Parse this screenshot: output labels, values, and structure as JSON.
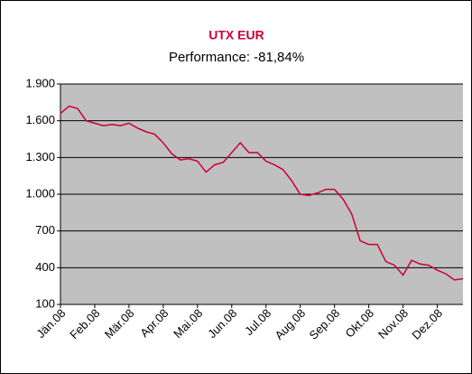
{
  "chart_data": {
    "type": "line",
    "title": "UTX EUR",
    "subtitle": "Performance: -81,84%",
    "categories": [
      "Jän.08",
      null,
      null,
      null,
      "Feb.08",
      null,
      null,
      null,
      "Mär.08",
      null,
      null,
      null,
      "Apr.08",
      null,
      null,
      null,
      "Mai.08",
      null,
      null,
      null,
      "Jun.08",
      null,
      null,
      null,
      "Jul.08",
      null,
      null,
      null,
      "Aug.08",
      null,
      null,
      null,
      "Sep.08",
      null,
      null,
      null,
      "Okt.08",
      null,
      null,
      null,
      "Nov.08",
      null,
      null,
      null,
      "Dez.08",
      null,
      null,
      null
    ],
    "values": [
      1660,
      1720,
      1700,
      1600,
      1580,
      1560,
      1570,
      1560,
      1580,
      1540,
      1510,
      1490,
      1420,
      1330,
      1280,
      1290,
      1270,
      1180,
      1240,
      1260,
      1340,
      1420,
      1340,
      1340,
      1270,
      1240,
      1200,
      1110,
      1000,
      990,
      1010,
      1040,
      1040,
      960,
      840,
      620,
      590,
      590,
      450,
      420,
      340,
      460,
      430,
      420,
      380,
      350,
      300,
      310
    ],
    "color": "#cc0033",
    "ylim": [
      100,
      1900
    ],
    "yticks": [
      100,
      400,
      700,
      {
        "value": 1000,
        "label": "1.000"
      },
      {
        "value": 1300,
        "label": "1.300"
      },
      {
        "value": 1600,
        "label": "1.600"
      },
      {
        "value": 1900,
        "label": "1.900"
      }
    ],
    "grid": true
  }
}
